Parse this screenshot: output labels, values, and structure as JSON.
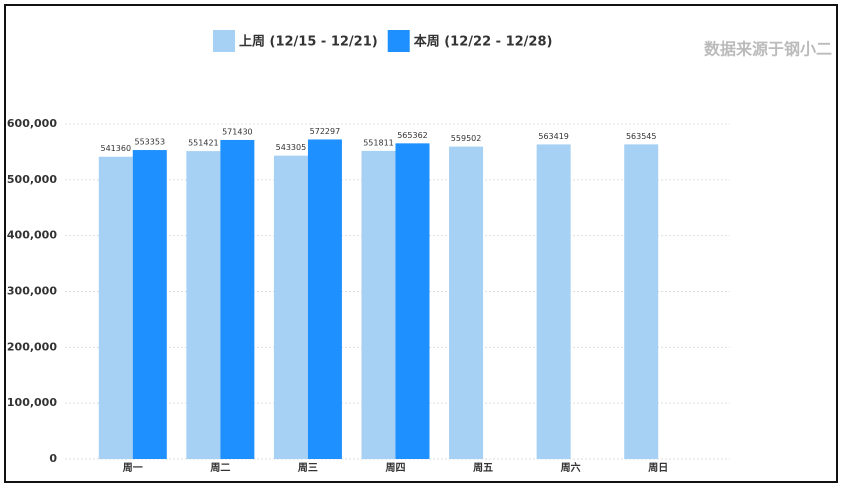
{
  "chart_data": {
    "type": "bar",
    "source": "数据来源于钢小二",
    "categories": [
      "周一",
      "周二",
      "周三",
      "周四",
      "周五",
      "周六",
      "周日"
    ],
    "series": [
      {
        "name": "上周 (12/15 - 12/21)",
        "color": "#a6d1f4",
        "values": [
          541360,
          551421,
          543305,
          551811,
          559502,
          563419,
          563545
        ]
      },
      {
        "name": "本周 (12/22 - 12/28)",
        "color": "#1e90ff",
        "values": [
          553353,
          571430,
          572297,
          565362,
          null,
          null,
          null
        ]
      }
    ],
    "ylim": [
      0,
      600000
    ],
    "yticks": [
      0,
      {
        "value": 100000,
        "label": "100,000"
      },
      {
        "value": 200000,
        "label": "200,000"
      },
      {
        "value": 300000,
        "label": "300,000"
      },
      {
        "value": 400000,
        "label": "400,000"
      },
      {
        "value": 500000,
        "label": "500,000"
      },
      {
        "value": 600000,
        "label": "600,000"
      }
    ],
    "grid": true
  }
}
